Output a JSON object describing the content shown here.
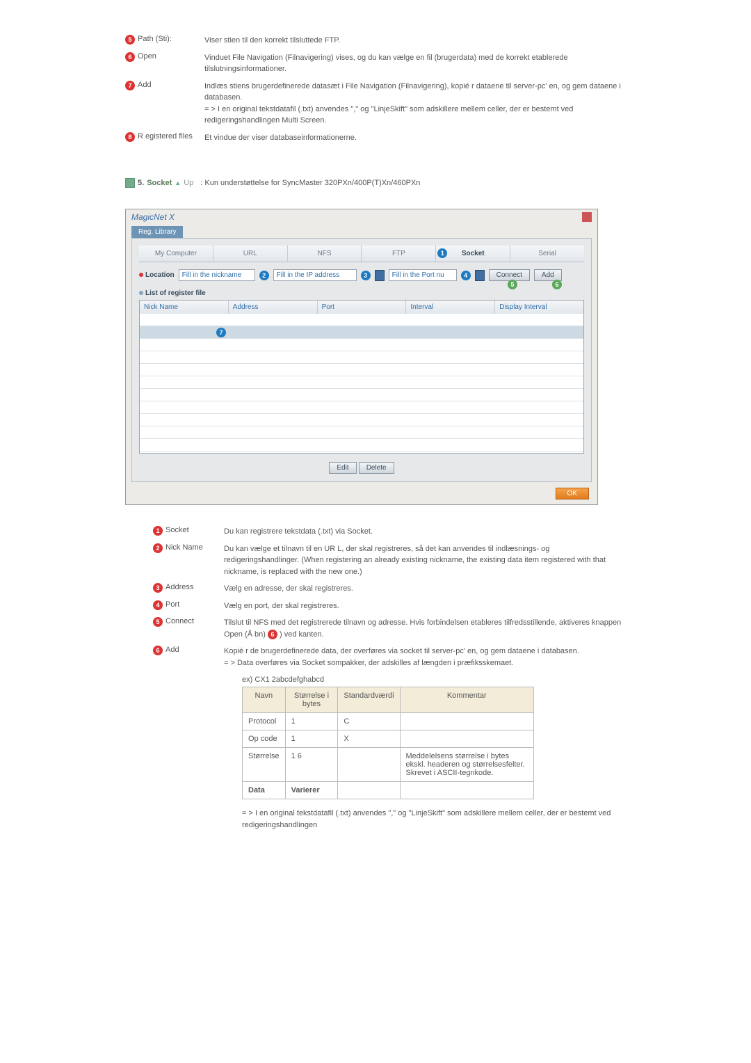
{
  "top_items": [
    {
      "num": "5",
      "label": "Path (Sti):",
      "desc": "Viser stien til den korrekt tilsluttede FTP."
    },
    {
      "num": "6",
      "label": "Open",
      "desc": "Vinduet File Navigation (Filnavigering) vises, og du kan vælge en fil (brugerdata) med de korrekt etablerede tilslutningsinformationer."
    },
    {
      "num": "7",
      "label": "Add",
      "desc": "Indlæs stiens brugerdefinerede datasæt i File Navigation (Filnavigering), kopié r dataene til server-pc'  en, og gem dataene i databasen.\n= > I en original tekstdatafil (.txt) anvendes \",\" og \"LinjeSkift\" som adskillere mellem celler, der er bestemt ved redigeringshandlingen Multi Screen."
    },
    {
      "num": "8",
      "label": "R egistered files",
      "desc": "Et vindue der viser databaseinformationerne."
    }
  ],
  "heading": {
    "prefix": "5.",
    "title": "Socket",
    "up_label": "Up",
    "note": ": Kun understøttelse for SyncMaster 320PXn/400P(T)Xn/460PXn"
  },
  "shot": {
    "app_title": "MagicNet X",
    "tab_label": "Reg. Library",
    "tabs": [
      "My Computer",
      "URL",
      "NFS",
      "FTP",
      "Socket",
      "Serial"
    ],
    "active_tab": "Socket",
    "location_label": "Location",
    "nickname_ph": "Fill in the nickname",
    "ip_ph": "Fill in the IP address",
    "port_ph": "Fill in the Port nu",
    "connect_btn": "Connect",
    "add_btn": "Add",
    "list_label": "List of register file",
    "grid_headers": [
      "Nick Name",
      "Address",
      "Port",
      "Interval",
      "Display Interval"
    ],
    "edit_btn": "Edit",
    "delete_btn": "Delete",
    "ok_btn": "OK",
    "markers": {
      "1": "1",
      "2": "2",
      "3": "3",
      "4": "4",
      "5": "5",
      "6": "6",
      "7": "7"
    }
  },
  "lower_items": [
    {
      "num": "1",
      "label": "Socket",
      "desc": "Du kan registrere tekstdata (.txt) via Socket."
    },
    {
      "num": "2",
      "label": "Nick Name",
      "desc": "Du kan vælge et tilnavn til en UR L, der skal registreres, så det kan anvendes til indlæsnings- og redigeringshandlinger. (When registering an already existing nickname, the existing data item registered with that nickname, is replaced with the new one.)"
    },
    {
      "num": "3",
      "label": "Address",
      "desc": "Vælg en adresse, der skal registreres."
    },
    {
      "num": "4",
      "label": "Port",
      "desc": "Vælg en port, der skal registreres."
    },
    {
      "num": "5",
      "label": "Connect",
      "desc": "Tilslut til NFS med det registrerede tilnavn og adresse. Hvis forbindelsen etableres tilfredsstillende, aktiveres knappen Open (Å bn) ❻ ) ved kanten.",
      "has_inline_badge": true
    },
    {
      "num": "6",
      "label": "Add",
      "desc": "Kopié r de brugerdefinerede data, der overføres via socket til server-pc'  en, og gem dataene i databasen.\n= > Data overføres via Socket sompakker, der adskilles af længden i præfiksskemaet."
    }
  ],
  "table": {
    "caption": "ex) CX1 2abcdefghabcd",
    "headers": [
      "Navn",
      "Størrelse i bytes",
      "Standardværdi",
      "Kommentar"
    ],
    "rows": [
      [
        "Protocol",
        "1",
        "C",
        ""
      ],
      [
        "Op code",
        "1",
        "X",
        ""
      ],
      [
        "Størrelse",
        "1 6",
        "",
        "Meddelelsens størrelse i bytes ekskl. headeren og størrelsesfelter.\nSkrevet i ASCII-tegnkode."
      ],
      [
        "Data",
        "Varierer",
        "",
        ""
      ]
    ],
    "bold_last_row": true
  },
  "footnote": "= > I en original tekstdatafil (.txt) anvendes \",\" og \"LinjeSkift\" som adskillere mellem celler, der er bestemt ved redigeringshandlingen"
}
